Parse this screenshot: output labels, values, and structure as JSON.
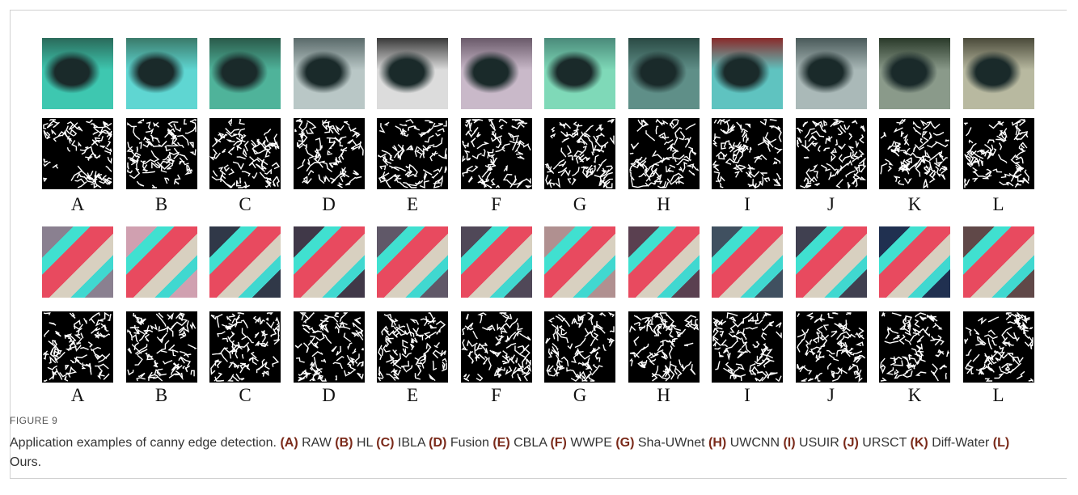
{
  "figure": {
    "rows": [
      {
        "labels": [
          "A",
          "B",
          "C",
          "D",
          "E",
          "F",
          "G",
          "H",
          "I",
          "J",
          "K",
          "L"
        ]
      },
      {
        "labels": [
          "A",
          "B",
          "C",
          "D",
          "E",
          "F",
          "G",
          "H",
          "I",
          "J",
          "K",
          "L"
        ]
      }
    ],
    "label": "FIGURE 9",
    "caption": [
      {
        "text": "Application examples of canny edge detection. "
      },
      {
        "text": "(A)",
        "bold": true
      },
      {
        "text": " RAW "
      },
      {
        "text": "(B)",
        "bold": true
      },
      {
        "text": " HL "
      },
      {
        "text": "(C)",
        "bold": true
      },
      {
        "text": " IBLA "
      },
      {
        "text": "(D)",
        "bold": true
      },
      {
        "text": " Fusion "
      },
      {
        "text": "(E)",
        "bold": true
      },
      {
        "text": " CBLA "
      },
      {
        "text": "(F)",
        "bold": true
      },
      {
        "text": " WWPE "
      },
      {
        "text": "(G)",
        "bold": true
      },
      {
        "text": " Sha-UWnet "
      },
      {
        "text": "(H)",
        "bold": true
      },
      {
        "text": " UWCNN "
      },
      {
        "text": "(I)",
        "bold": true
      },
      {
        "text": " USUIR "
      },
      {
        "text": "(J)",
        "bold": true
      },
      {
        "text": " URSCT "
      },
      {
        "text": "(K)",
        "bold": true
      },
      {
        "text": " Diff-Water "
      },
      {
        "text": "(L)",
        "bold": true
      },
      {
        "text": " Ours."
      }
    ]
  }
}
